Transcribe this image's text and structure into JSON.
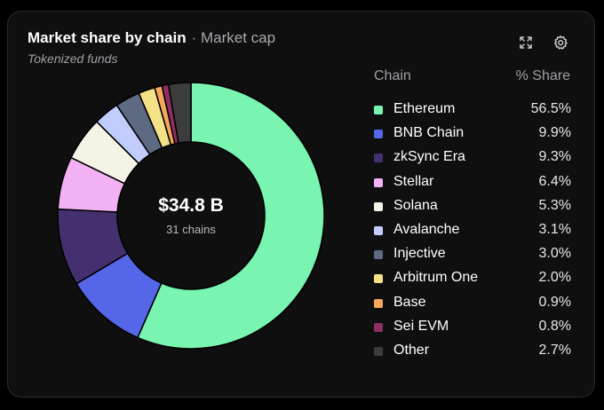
{
  "header": {
    "title": "Market share by chain",
    "metric": "· Market cap",
    "subtitle": "Tokenized funds"
  },
  "toolbar": {
    "expand_icon": "expand-icon",
    "settings_icon": "gear-icon"
  },
  "summary": {
    "total": "$34.8 B",
    "count_label": "31 chains"
  },
  "legend": {
    "col_chain": "Chain",
    "col_share": "% Share"
  },
  "chart_data": {
    "type": "pie",
    "donut": true,
    "categories": [
      "Ethereum",
      "BNB Chain",
      "zkSync Era",
      "Stellar",
      "Solana",
      "Avalanche",
      "Injective",
      "Arbitrum One",
      "Base",
      "Sei EVM",
      "Other"
    ],
    "values": [
      56.5,
      9.9,
      9.3,
      6.4,
      5.3,
      3.1,
      3.0,
      2.0,
      0.9,
      0.8,
      2.7
    ],
    "labels": [
      "56.5%",
      "9.9%",
      "9.3%",
      "6.4%",
      "5.3%",
      "3.1%",
      "3.0%",
      "2.0%",
      "0.9%",
      "0.8%",
      "2.7%"
    ],
    "colors": [
      "#79f5b1",
      "#5567e8",
      "#44306e",
      "#f2b2f4",
      "#f5f3e6",
      "#c2cdfd",
      "#5d6a82",
      "#f3e287",
      "#f6a85a",
      "#8e2f63",
      "#3c3c3e"
    ],
    "legend_position": "right"
  }
}
